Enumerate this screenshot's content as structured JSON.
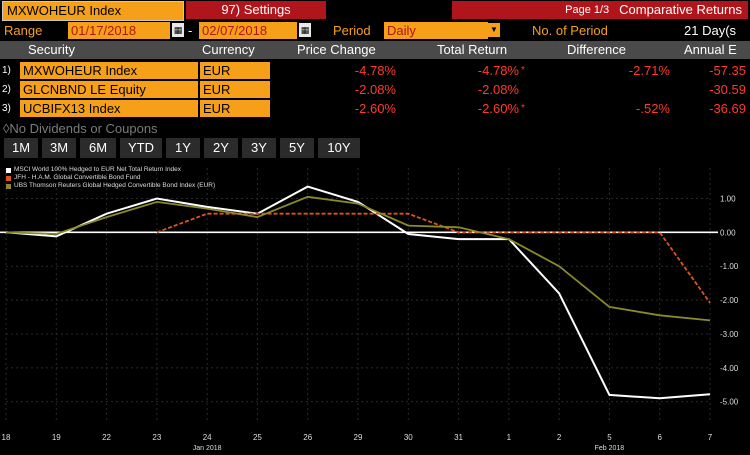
{
  "header": {
    "ticker": "MXWOHEUR Index",
    "settings": "97) Settings",
    "page": "Page 1/3",
    "report": "Comparative Returns"
  },
  "range": {
    "label": "Range",
    "start": "01/17/2018",
    "sep": "-",
    "end": "02/07/2018",
    "period_label": "Period",
    "period_value": "Daily",
    "nperiod_label": "No. of Period",
    "nperiod_value": "21 Day(s"
  },
  "table": {
    "columns": [
      "Security",
      "Currency",
      "Price Change",
      "Total Return",
      "Difference",
      "Annual E"
    ],
    "rows": [
      {
        "idx": "1)",
        "security": "MXWOHEUR Index",
        "currency": "EUR",
        "price_change": "-4.78%",
        "total_return": "-4.78%",
        "tr_mark": "*",
        "difference": "-2.71%",
        "annual": "-57.35"
      },
      {
        "idx": "2)",
        "security": "GLCNBND LE Equity",
        "currency": "EUR",
        "price_change": "-2.08%",
        "total_return": "-2.08%",
        "tr_mark": "",
        "difference": "",
        "annual": "-30.59"
      },
      {
        "idx": "3)",
        "security": "UCBIFX13 Index",
        "currency": "EUR",
        "price_change": "-2.60%",
        "total_return": "-2.60%",
        "tr_mark": "*",
        "difference": "-.52%",
        "annual": "-36.69"
      }
    ]
  },
  "note": "◊No Dividends or Coupons",
  "tabs": [
    "1M",
    "3M",
    "6M",
    "YTD",
    "1Y",
    "2Y",
    "3Y",
    "5Y",
    "10Y"
  ],
  "legend": [
    {
      "label": "MSCI World 100% Hedged to EUR Net Total Return Index",
      "color": "#ffffff"
    },
    {
      "label": "JFH - H.A.M. Global Convertible Bond Fund",
      "color": "#e0541a"
    },
    {
      "label": "UBS Thomson Reuters Global Hedged Convertible Bond Index (EUR)",
      "color": "#8a8a2a"
    }
  ],
  "chart_data": {
    "type": "line",
    "x": [
      "18",
      "19",
      "22",
      "23",
      "24",
      "25",
      "26",
      "29",
      "30",
      "31",
      "1",
      "2",
      "5",
      "6",
      "7"
    ],
    "x_group_labels": [
      {
        "label": "Jan 2018",
        "at": "24"
      },
      {
        "label": "Feb 2018",
        "at": "5"
      }
    ],
    "y_ticks": [
      "1.00",
      "0.00",
      "-1.00",
      "-2.00",
      "-3.00",
      "-4.00",
      "-5.00"
    ],
    "ylim": [
      -5.6,
      1.9
    ],
    "series": [
      {
        "name": "MSCI World 100% Hedged to EUR Net Total Return Index",
        "color": "#ffffff",
        "values": [
          0.0,
          -0.12,
          0.55,
          1.0,
          0.75,
          0.55,
          1.35,
          0.9,
          -0.05,
          -0.2,
          -0.2,
          -1.8,
          -4.8,
          -4.9,
          -4.78
        ]
      },
      {
        "name": "JFH - H.A.M. Global Convertible Bond Fund",
        "color": "#e0541a",
        "values": [
          null,
          null,
          null,
          0.0,
          0.55,
          0.55,
          0.55,
          0.55,
          0.55,
          0.0,
          0.0,
          0.0,
          0.0,
          0.0,
          -2.08
        ]
      },
      {
        "name": "UBS Thomson Reuters Global Hedged Convertible Bond Index (EUR)",
        "color": "#8a8a2a",
        "values": [
          0.0,
          -0.05,
          0.45,
          0.9,
          0.7,
          0.45,
          1.05,
          0.85,
          0.2,
          0.15,
          -0.2,
          -1.0,
          -2.2,
          -2.45,
          -2.6
        ]
      }
    ],
    "reference_line": {
      "value": 0.0,
      "color": "#ffffff"
    }
  }
}
